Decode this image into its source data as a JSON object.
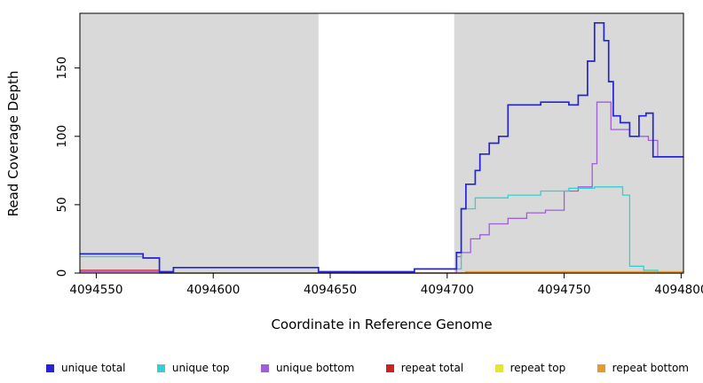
{
  "chart_data": {
    "type": "line",
    "subtype": "step",
    "title": "",
    "xlabel": "Coordinate in Reference Genome",
    "ylabel": "Read Coverage Depth",
    "xlim": [
      4094543,
      4094801
    ],
    "ylim": [
      0,
      190
    ],
    "x_ticks": [
      4094550,
      4094600,
      4094650,
      4094700,
      4094750,
      4094800
    ],
    "y_ticks": [
      0,
      50,
      100,
      150
    ],
    "grid": false,
    "legend_position": "bottom",
    "background_color": "#ffffff",
    "region_color": "#d9d9d9",
    "background_regions": [
      {
        "x0": 4094543,
        "x1": 4094645
      },
      {
        "x0": 4094703,
        "x1": 4094801
      }
    ],
    "series": [
      {
        "name": "unique total",
        "color": "#2424d4",
        "points": [
          [
            4094543,
            14
          ],
          [
            4094570,
            11
          ],
          [
            4094577,
            1
          ],
          [
            4094583,
            4
          ],
          [
            4094645,
            1
          ],
          [
            4094686,
            3
          ],
          [
            4094704,
            15
          ],
          [
            4094706,
            47
          ],
          [
            4094708,
            65
          ],
          [
            4094712,
            75
          ],
          [
            4094714,
            87
          ],
          [
            4094718,
            95
          ],
          [
            4094722,
            100
          ],
          [
            4094726,
            123
          ],
          [
            4094740,
            125
          ],
          [
            4094752,
            123
          ],
          [
            4094756,
            130
          ],
          [
            4094760,
            155
          ],
          [
            4094763,
            183
          ],
          [
            4094767,
            170
          ],
          [
            4094769,
            140
          ],
          [
            4094771,
            115
          ],
          [
            4094774,
            110
          ],
          [
            4094778,
            100
          ],
          [
            4094782,
            115
          ],
          [
            4094785,
            117
          ],
          [
            4094788,
            85
          ],
          [
            4094801,
            85
          ]
        ]
      },
      {
        "name": "unique top",
        "color": "#35cfcf",
        "points": [
          [
            4094543,
            12
          ],
          [
            4094570,
            11
          ],
          [
            4094577,
            0
          ],
          [
            4094686,
            3
          ],
          [
            4094706,
            47
          ],
          [
            4094712,
            55
          ],
          [
            4094726,
            57
          ],
          [
            4094740,
            60
          ],
          [
            4094752,
            62
          ],
          [
            4094763,
            63
          ],
          [
            4094775,
            57
          ],
          [
            4094778,
            5
          ],
          [
            4094784,
            2
          ],
          [
            4094790,
            0
          ],
          [
            4094801,
            0
          ]
        ]
      },
      {
        "name": "unique bottom",
        "color": "#a05fd6",
        "points": [
          [
            4094543,
            1
          ],
          [
            4094583,
            4
          ],
          [
            4094645,
            1
          ],
          [
            4094660,
            0
          ],
          [
            4094704,
            12
          ],
          [
            4094706,
            15
          ],
          [
            4094710,
            25
          ],
          [
            4094714,
            28
          ],
          [
            4094718,
            36
          ],
          [
            4094726,
            40
          ],
          [
            4094734,
            44
          ],
          [
            4094742,
            46
          ],
          [
            4094750,
            60
          ],
          [
            4094756,
            63
          ],
          [
            4094762,
            80
          ],
          [
            4094764,
            125
          ],
          [
            4094770,
            105
          ],
          [
            4094778,
            100
          ],
          [
            4094786,
            97
          ],
          [
            4094790,
            85
          ],
          [
            4094801,
            85
          ]
        ]
      },
      {
        "name": "repeat total",
        "color": "#cc2222",
        "points": [
          [
            4094543,
            2
          ],
          [
            4094577,
            0
          ],
          [
            4094801,
            0
          ]
        ]
      },
      {
        "name": "repeat top",
        "color": "#e6e632",
        "points": [
          [
            4094543,
            0
          ],
          [
            4094801,
            0
          ]
        ]
      },
      {
        "name": "repeat bottom",
        "color": "#e8992b",
        "points": [
          [
            4094543,
            0
          ],
          [
            4094708,
            1
          ],
          [
            4094801,
            1
          ]
        ]
      }
    ]
  }
}
